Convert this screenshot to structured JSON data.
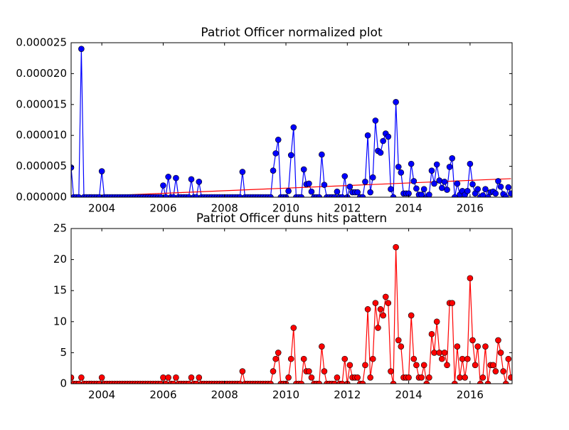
{
  "chart_data": [
    {
      "type": "line",
      "title": "Patriot Officer normalized plot",
      "x": [
        2003,
        2003.083,
        2003.167,
        2003.25,
        2003.333,
        2003.417,
        2003.5,
        2003.583,
        2003.667,
        2003.75,
        2003.833,
        2003.917,
        2004,
        2004.083,
        2004.167,
        2004.25,
        2004.333,
        2004.417,
        2004.5,
        2004.583,
        2004.667,
        2004.75,
        2004.833,
        2004.917,
        2005,
        2005.083,
        2005.167,
        2005.25,
        2005.333,
        2005.417,
        2005.5,
        2005.583,
        2005.667,
        2005.75,
        2005.833,
        2005.917,
        2006,
        2006.083,
        2006.167,
        2006.25,
        2006.333,
        2006.417,
        2006.5,
        2006.583,
        2006.667,
        2006.75,
        2006.833,
        2006.917,
        2007,
        2007.083,
        2007.167,
        2007.25,
        2007.333,
        2007.417,
        2007.5,
        2007.583,
        2007.667,
        2007.75,
        2007.833,
        2007.917,
        2008,
        2008.083,
        2008.167,
        2008.25,
        2008.333,
        2008.417,
        2008.5,
        2008.583,
        2008.667,
        2008.75,
        2008.833,
        2008.917,
        2009,
        2009.083,
        2009.167,
        2009.25,
        2009.333,
        2009.417,
        2009.5,
        2009.583,
        2009.667,
        2009.75,
        2009.833,
        2009.917,
        2010,
        2010.083,
        2010.167,
        2010.25,
        2010.333,
        2010.417,
        2010.5,
        2010.583,
        2010.667,
        2010.75,
        2010.833,
        2010.917,
        2011,
        2011.083,
        2011.167,
        2011.25,
        2011.333,
        2011.417,
        2011.5,
        2011.583,
        2011.667,
        2011.75,
        2011.833,
        2011.917,
        2012,
        2012.083,
        2012.167,
        2012.25,
        2012.333,
        2012.417,
        2012.5,
        2012.583,
        2012.667,
        2012.75,
        2012.833,
        2012.917,
        2013,
        2013.083,
        2013.167,
        2013.25,
        2013.333,
        2013.417,
        2013.5,
        2013.583,
        2013.667,
        2013.75,
        2013.833,
        2013.917,
        2014,
        2014.083,
        2014.167,
        2014.25,
        2014.333,
        2014.417,
        2014.5,
        2014.583,
        2014.667,
        2014.75,
        2014.833,
        2014.917,
        2015,
        2015.083,
        2015.167,
        2015.25,
        2015.333,
        2015.417,
        2015.5,
        2015.583,
        2015.667,
        2015.75,
        2015.833,
        2015.917,
        2016,
        2016.083,
        2016.167,
        2016.25,
        2016.333,
        2016.417,
        2016.5,
        2016.583,
        2016.667,
        2016.75,
        2016.833,
        2016.917,
        2017,
        2017.083,
        2017.167,
        2017.25,
        2017.333
      ],
      "series": [
        {
          "color": "#0000ff",
          "values": [
            4.8e-06,
            0,
            0,
            0,
            2.4e-05,
            0,
            0,
            0,
            0,
            0,
            0,
            0,
            4.2e-06,
            0,
            0,
            0,
            0,
            0,
            0,
            0,
            0,
            0,
            0,
            0,
            0,
            0,
            0,
            0,
            0,
            0,
            0,
            0,
            0,
            0,
            0,
            0,
            1.9e-06,
            0,
            3.3e-06,
            0,
            0,
            3.1e-06,
            0,
            0,
            0,
            0,
            0,
            2.9e-06,
            0,
            0,
            2.5e-06,
            0,
            0,
            0,
            0,
            0,
            0,
            0,
            0,
            0,
            0,
            0,
            0,
            0,
            0,
            0,
            0,
            4.1e-06,
            0,
            0,
            0,
            0,
            0,
            0,
            0,
            0,
            0,
            0,
            0,
            4.3e-06,
            7.1e-06,
            9.3e-06,
            0,
            0,
            0,
            1e-06,
            6.8e-06,
            1.13e-05,
            0,
            0,
            0,
            4.5e-06,
            2.1e-06,
            2.2e-06,
            9e-07,
            0,
            0,
            0,
            6.9e-06,
            2e-06,
            0,
            0,
            0,
            0,
            9e-07,
            0,
            0,
            3.4e-06,
            0,
            1.7e-06,
            8e-07,
            8e-07,
            8e-07,
            0,
            0,
            2.5e-06,
            1e-05,
            8e-07,
            3.2e-06,
            1.24e-05,
            7.5e-06,
            7.2e-06,
            9.1e-06,
            1.03e-05,
            9.8e-06,
            1.3e-06,
            0,
            1.54e-05,
            4.9e-06,
            4e-06,
            6e-07,
            6e-07,
            6e-07,
            5.4e-06,
            2.6e-06,
            1.4e-06,
            4e-07,
            4e-07,
            1.3e-06,
            0,
            4e-07,
            4.3e-06,
            2.2e-06,
            5.3e-06,
            2.7e-06,
            1.5e-06,
            2.5e-06,
            1.2e-06,
            4.9e-06,
            6.3e-06,
            0,
            2.2e-06,
            4e-07,
            1e-06,
            4e-07,
            1e-06,
            5.4e-06,
            2.1e-06,
            6e-07,
            1.3e-06,
            0,
            3e-07,
            1.3e-06,
            0,
            8e-07,
            9e-07,
            6e-07,
            2.6e-06,
            1.7e-06,
            5e-07,
            0,
            1.6e-06,
            6e-07
          ]
        }
      ],
      "trend": {
        "color": "#ff0000",
        "x": [
          2003,
          2017.333
        ],
        "values": [
          0,
          3e-06
        ]
      },
      "xlim": [
        2003,
        2017.37
      ],
      "xticks": [
        2004,
        2006,
        2008,
        2010,
        2012,
        2014,
        2016
      ],
      "ylim": [
        0,
        2.5e-05
      ],
      "yticks": [
        {
          "value": 0,
          "label": "0.000000"
        },
        {
          "value": 5e-06,
          "label": "0.000005"
        },
        {
          "value": 1e-05,
          "label": "0.000010"
        },
        {
          "value": 1.5e-05,
          "label": "0.000015"
        },
        {
          "value": 2e-05,
          "label": "0.000020"
        },
        {
          "value": 2.5e-05,
          "label": "0.000025"
        }
      ]
    },
    {
      "type": "line",
      "title": "Patriot Officer duns hits pattern",
      "x": [
        2003,
        2003.083,
        2003.167,
        2003.25,
        2003.333,
        2003.417,
        2003.5,
        2003.583,
        2003.667,
        2003.75,
        2003.833,
        2003.917,
        2004,
        2004.083,
        2004.167,
        2004.25,
        2004.333,
        2004.417,
        2004.5,
        2004.583,
        2004.667,
        2004.75,
        2004.833,
        2004.917,
        2005,
        2005.083,
        2005.167,
        2005.25,
        2005.333,
        2005.417,
        2005.5,
        2005.583,
        2005.667,
        2005.75,
        2005.833,
        2005.917,
        2006,
        2006.083,
        2006.167,
        2006.25,
        2006.333,
        2006.417,
        2006.5,
        2006.583,
        2006.667,
        2006.75,
        2006.833,
        2006.917,
        2007,
        2007.083,
        2007.167,
        2007.25,
        2007.333,
        2007.417,
        2007.5,
        2007.583,
        2007.667,
        2007.75,
        2007.833,
        2007.917,
        2008,
        2008.083,
        2008.167,
        2008.25,
        2008.333,
        2008.417,
        2008.5,
        2008.583,
        2008.667,
        2008.75,
        2008.833,
        2008.917,
        2009,
        2009.083,
        2009.167,
        2009.25,
        2009.333,
        2009.417,
        2009.5,
        2009.583,
        2009.667,
        2009.75,
        2009.833,
        2009.917,
        2010,
        2010.083,
        2010.167,
        2010.25,
        2010.333,
        2010.417,
        2010.5,
        2010.583,
        2010.667,
        2010.75,
        2010.833,
        2010.917,
        2011,
        2011.083,
        2011.167,
        2011.25,
        2011.333,
        2011.417,
        2011.5,
        2011.583,
        2011.667,
        2011.75,
        2011.833,
        2011.917,
        2012,
        2012.083,
        2012.167,
        2012.25,
        2012.333,
        2012.417,
        2012.5,
        2012.583,
        2012.667,
        2012.75,
        2012.833,
        2012.917,
        2013,
        2013.083,
        2013.167,
        2013.25,
        2013.333,
        2013.417,
        2013.5,
        2013.583,
        2013.667,
        2013.75,
        2013.833,
        2013.917,
        2014,
        2014.083,
        2014.167,
        2014.25,
        2014.333,
        2014.417,
        2014.5,
        2014.583,
        2014.667,
        2014.75,
        2014.833,
        2014.917,
        2015,
        2015.083,
        2015.167,
        2015.25,
        2015.333,
        2015.417,
        2015.5,
        2015.583,
        2015.667,
        2015.75,
        2015.833,
        2015.917,
        2016,
        2016.083,
        2016.167,
        2016.25,
        2016.333,
        2016.417,
        2016.5,
        2016.583,
        2016.667,
        2016.75,
        2016.833,
        2016.917,
        2017,
        2017.083,
        2017.167,
        2017.25,
        2017.333
      ],
      "series": [
        {
          "color": "#ff0000",
          "values": [
            1,
            0,
            0,
            0,
            1,
            0,
            0,
            0,
            0,
            0,
            0,
            0,
            1,
            0,
            0,
            0,
            0,
            0,
            0,
            0,
            0,
            0,
            0,
            0,
            0,
            0,
            0,
            0,
            0,
            0,
            0,
            0,
            0,
            0,
            0,
            0,
            1,
            0,
            1,
            0,
            0,
            1,
            0,
            0,
            0,
            0,
            0,
            1,
            0,
            0,
            1,
            0,
            0,
            0,
            0,
            0,
            0,
            0,
            0,
            0,
            0,
            0,
            0,
            0,
            0,
            0,
            0,
            2,
            0,
            0,
            0,
            0,
            0,
            0,
            0,
            0,
            0,
            0,
            0,
            2,
            4,
            5,
            0,
            0,
            0,
            1,
            4,
            9,
            0,
            0,
            0,
            4,
            2,
            2,
            1,
            0,
            0,
            0,
            6,
            2,
            0,
            0,
            0,
            0,
            1,
            0,
            0,
            4,
            0,
            3,
            1,
            1,
            1,
            0,
            0,
            3,
            12,
            1,
            4,
            13,
            9,
            12,
            11,
            14,
            13,
            2,
            0,
            22,
            7,
            6,
            1,
            1,
            1,
            11,
            4,
            3,
            1,
            1,
            3,
            0,
            1,
            8,
            5,
            10,
            5,
            4,
            5,
            3,
            13,
            13,
            0,
            6,
            1,
            4,
            1,
            4,
            17,
            7,
            3,
            6,
            0,
            1,
            6,
            0,
            3,
            3,
            2,
            7,
            5,
            2,
            0,
            4,
            1
          ]
        }
      ],
      "xlim": [
        2003,
        2017.37
      ],
      "xticks": [
        2004,
        2006,
        2008,
        2010,
        2012,
        2014,
        2016
      ],
      "ylim": [
        0,
        25
      ],
      "yticks": [
        0,
        5,
        10,
        15,
        20,
        25
      ]
    }
  ]
}
